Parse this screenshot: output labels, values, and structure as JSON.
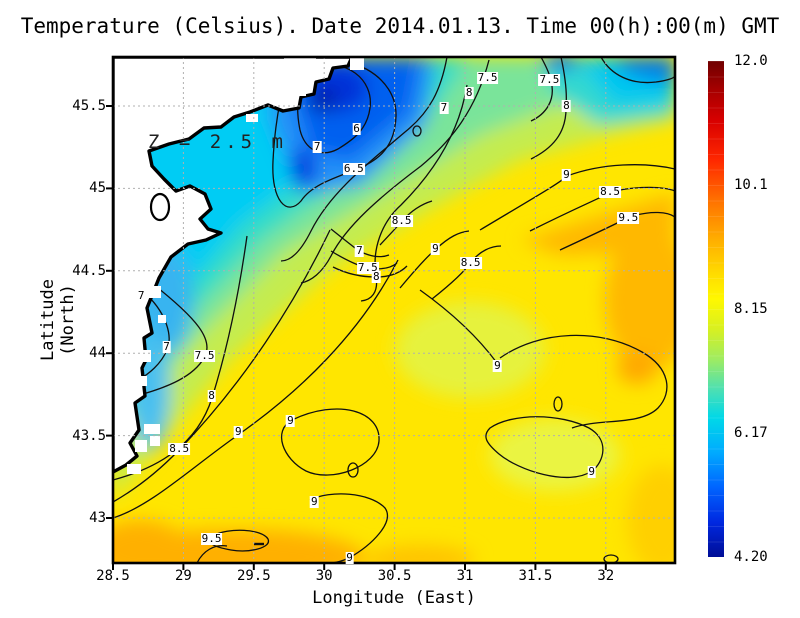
{
  "title": "Temperature (Celsius). Date 2014.01.13. Time 00(h):00(m) GMT",
  "annotation": "Z = 2.5 m",
  "axes": {
    "xlabel": "Longitude (East)",
    "ylabel": "Latitude (North)",
    "x_ticks": [
      "28.5",
      "29",
      "29.5",
      "30",
      "30.5",
      "31",
      "31.5",
      "32"
    ],
    "y_ticks": [
      "43",
      "43.5",
      "44",
      "44.5",
      "45",
      "45.5"
    ]
  },
  "colorbar": {
    "tick_labels": [
      "12.0",
      "10.1",
      "8.15",
      "6.17",
      "4.20"
    ],
    "min": 4.2,
    "max": 12.0,
    "gradient_top_to_bottom": [
      "#700000",
      "#d80000",
      "#ff2800",
      "#ff7000",
      "#ffae00",
      "#ffdc00",
      "#fff800",
      "#d8f020",
      "#a0ec60",
      "#50e0b0",
      "#00d8e8",
      "#00aaff",
      "#0064ff",
      "#0028e0",
      "#000e96"
    ]
  },
  "chart_data": {
    "type": "heatmap",
    "title": "Temperature (Celsius). Date 2014.01.13. Time 00(h):00(m) GMT",
    "annotation": "Z = 2.5 m",
    "xlabel": "Longitude (East)",
    "ylabel": "Latitude (North)",
    "x_range": [
      28.5,
      32.49
    ],
    "y_range": [
      42.73,
      45.8
    ],
    "x_tick_values": [
      28.5,
      29,
      29.5,
      30,
      30.5,
      31,
      31.5,
      32
    ],
    "y_tick_values": [
      43,
      43.5,
      44,
      44.5,
      45,
      45.5
    ],
    "grid": true,
    "colorbar_range": [
      4.2,
      12.0
    ],
    "colorbar_ticks": [
      12.0,
      10.1,
      8.15,
      6.17,
      4.2
    ],
    "contour_levels": [
      5,
      5.5,
      6,
      6.5,
      7,
      7.5,
      8,
      8.5,
      9,
      9.5
    ],
    "land": "white region upper-left (NW Black Sea coast, Danube delta)",
    "grid_lons": [
      28.75,
      29.25,
      29.75,
      30.25,
      30.75,
      31.25,
      31.75,
      32.25
    ],
    "grid_lats": [
      45.6,
      45.15,
      44.7,
      44.25,
      43.8,
      43.35,
      42.9
    ],
    "temperature_grid": [
      [
        null,
        null,
        5.6,
        6.2,
        7.4,
        7.6,
        7.2,
        6.9
      ],
      [
        null,
        6.9,
        6.4,
        7.6,
        8.3,
        8.6,
        8.9,
        9.4
      ],
      [
        7.2,
        7.0,
        7.9,
        8.6,
        8.8,
        8.9,
        9.4,
        9.7
      ],
      [
        7.4,
        8.0,
        8.7,
        9.0,
        8.9,
        9.1,
        9.8,
        9.3
      ],
      [
        8.2,
        8.8,
        9.1,
        9.3,
        9.0,
        9.2,
        9.2,
        9.1
      ],
      [
        8.7,
        9.3,
        9.5,
        9.1,
        9.2,
        9.4,
        9.1,
        9.3
      ],
      [
        9.2,
        9.7,
        9.8,
        9.4,
        9.3,
        9.2,
        9.3,
        9.5
      ]
    ],
    "contour_labels": [
      {
        "v": "7.5",
        "lon": 31.16,
        "lat": 45.67
      },
      {
        "v": "7.5",
        "lon": 31.6,
        "lat": 45.66
      },
      {
        "v": "8",
        "lon": 31.03,
        "lat": 45.58
      },
      {
        "v": "8",
        "lon": 31.72,
        "lat": 45.5
      },
      {
        "v": "7",
        "lon": 30.85,
        "lat": 45.49
      },
      {
        "v": "6",
        "lon": 30.23,
        "lat": 45.36
      },
      {
        "v": "7",
        "lon": 29.95,
        "lat": 45.25
      },
      {
        "v": "6.5",
        "lon": 30.21,
        "lat": 45.12
      },
      {
        "v": "7",
        "lon": 28.7,
        "lat": 44.35
      },
      {
        "v": "8.5",
        "lon": 30.55,
        "lat": 44.8
      },
      {
        "v": "7",
        "lon": 30.25,
        "lat": 44.62
      },
      {
        "v": "7.5",
        "lon": 30.31,
        "lat": 44.52
      },
      {
        "v": "8",
        "lon": 30.37,
        "lat": 44.46
      },
      {
        "v": "9",
        "lon": 30.79,
        "lat": 44.63
      },
      {
        "v": "8.5",
        "lon": 31.04,
        "lat": 44.55
      },
      {
        "v": "9",
        "lon": 31.72,
        "lat": 45.08
      },
      {
        "v": "8.5",
        "lon": 32.03,
        "lat": 44.98
      },
      {
        "v": "9.5",
        "lon": 32.16,
        "lat": 44.82
      },
      {
        "v": "7",
        "lon": 28.88,
        "lat": 44.04
      },
      {
        "v": "7.5",
        "lon": 29.15,
        "lat": 43.98
      },
      {
        "v": "8",
        "lon": 29.2,
        "lat": 43.74
      },
      {
        "v": "8.5",
        "lon": 28.97,
        "lat": 43.42
      },
      {
        "v": "9",
        "lon": 29.39,
        "lat": 43.52
      },
      {
        "v": "9",
        "lon": 29.76,
        "lat": 43.59
      },
      {
        "v": "9",
        "lon": 31.23,
        "lat": 43.92
      },
      {
        "v": "9",
        "lon": 31.9,
        "lat": 43.28
      },
      {
        "v": "9.5",
        "lon": 29.2,
        "lat": 42.87
      },
      {
        "v": "9",
        "lon": 29.93,
        "lat": 43.1
      },
      {
        "v": "9",
        "lon": 30.18,
        "lat": 42.76
      }
    ],
    "legend_position": "right-colorbar"
  }
}
